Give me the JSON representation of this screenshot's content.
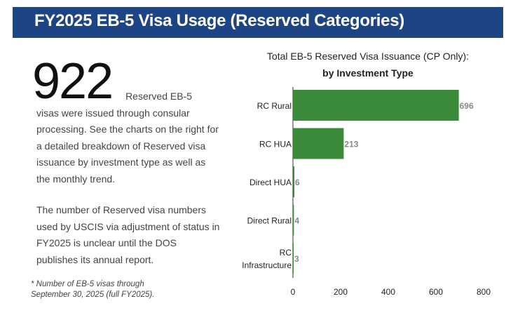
{
  "header": {
    "title": "FY2025 EB-5 Visa Usage (Reserved Categories)"
  },
  "summary": {
    "big_number": "922",
    "text_line1": "Reserved EB-5",
    "text_rest": "visas were issued through consular processing. See the charts on the right for a detailed breakdown of Reserved visa issuance by investment type as well as the monthly trend.",
    "adjustment_text": "The number of Reserved visa numbers used by USCIS via adjustment of status in FY2025 is unclear until the DOS publishes its annual report.",
    "footnote_line1": "* Number of EB-5 visas through",
    "footnote_line2": "September 30, 2025 (full FY2025)."
  },
  "chart_data": {
    "type": "bar",
    "orientation": "horizontal",
    "title": "Total EB-5 Reserved Visa Issuance (CP Only):",
    "subtitle": "by Investment Type",
    "categories": [
      "RC Rural",
      "RC HUA",
      "Direct HUA",
      "Direct Rural",
      "RC Infrastructure"
    ],
    "category_lines": [
      [
        "RC Rural"
      ],
      [
        "RC HUA"
      ],
      [
        "Direct HUA"
      ],
      [
        "Direct Rural"
      ],
      [
        "RC",
        "Infrastructure"
      ]
    ],
    "values": [
      696,
      213,
      6,
      4,
      3
    ],
    "xlim": [
      0,
      800
    ],
    "xticks": [
      0,
      200,
      400,
      600,
      800
    ],
    "bar_color": "#3a8a3a",
    "data_label_color": "#8a8a8a",
    "grid": false
  }
}
